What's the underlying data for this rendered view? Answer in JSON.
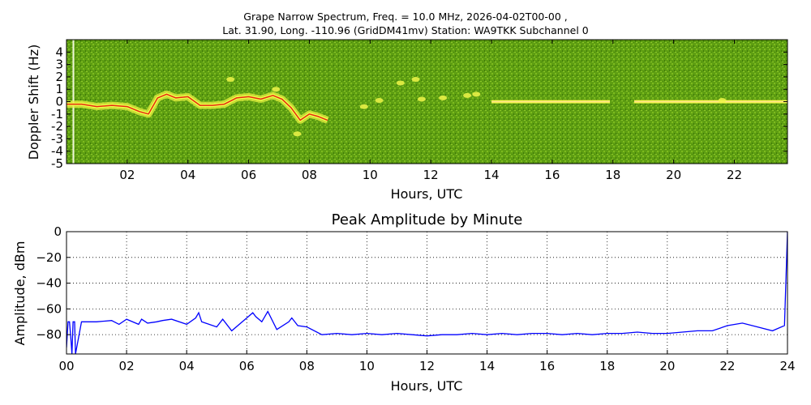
{
  "header": {
    "title_line1": "Grape Narrow Spectrum, Freq. = 10.0 MHz, 2026-04-02T00-00 ,",
    "title_line2": "Lat.  31.90, Long. -110.96 (GridDM41mv) Station: WA9TKK Subchannel 0"
  },
  "chart_data": [
    {
      "type": "heatmap",
      "title": "Grape Narrow Spectrum, Freq. = 10.0 MHz, 2026-04-02T00-00 , Lat.  31.90, Long. -110.96 (GridDM41mv) Station: WA9TKK Subchannel 0",
      "xlabel": "Hours, UTC",
      "ylabel": "Doppler Shift (Hz)",
      "xlim": [
        0,
        23.75
      ],
      "ylim": [
        -5,
        5
      ],
      "xticks": [
        2,
        4,
        6,
        8,
        10,
        12,
        14,
        16,
        18,
        20,
        22
      ],
      "xtick_labels": [
        "02",
        "04",
        "06",
        "08",
        "10",
        "12",
        "14",
        "16",
        "18",
        "20",
        "22"
      ],
      "yticks": [
        4,
        3,
        2,
        1,
        0,
        -1,
        -2,
        -3,
        -4,
        -5
      ],
      "ytick_labels": [
        "4",
        "3",
        "2",
        "1",
        "0",
        "-1",
        "-2",
        "-3",
        "-4",
        "-5"
      ],
      "colormap": "green-yellow-red",
      "background_color": "#5a9a10",
      "trace": {
        "hours": [
          0.0,
          0.5,
          1.0,
          1.5,
          2.0,
          2.4,
          2.7,
          3.0,
          3.3,
          3.6,
          4.0,
          4.4,
          4.8,
          5.2,
          5.6,
          6.0,
          6.4,
          6.8,
          7.1,
          7.4,
          7.7,
          8.0,
          8.3,
          8.6
        ],
        "doppler_hz": [
          -0.2,
          -0.2,
          -0.4,
          -0.3,
          -0.4,
          -0.8,
          -1.0,
          0.3,
          0.6,
          0.3,
          0.4,
          -0.3,
          -0.3,
          -0.2,
          0.3,
          0.4,
          0.2,
          0.5,
          0.2,
          -0.5,
          -1.5,
          -1.0,
          -1.2,
          -1.5
        ]
      },
      "flat_trace": {
        "segments": [
          [
            14.0,
            17.9,
            0.0
          ],
          [
            18.7,
            23.75,
            0.0
          ]
        ]
      },
      "blobs": [
        {
          "hour": 11.0,
          "hz": 1.5
        },
        {
          "hour": 11.5,
          "hz": 1.8
        },
        {
          "hour": 11.7,
          "hz": 0.2
        },
        {
          "hour": 12.4,
          "hz": 0.3
        },
        {
          "hour": 13.2,
          "hz": 0.5
        },
        {
          "hour": 13.5,
          "hz": 0.6
        },
        {
          "hour": 10.3,
          "hz": 0.1
        },
        {
          "hour": 9.8,
          "hz": -0.4
        },
        {
          "hour": 5.4,
          "hz": 1.8
        },
        {
          "hour": 6.9,
          "hz": 1.0
        },
        {
          "hour": 7.6,
          "hz": -2.6
        },
        {
          "hour": 21.6,
          "hz": 0.1
        }
      ]
    },
    {
      "type": "line",
      "title": "Peak Amplitude by Minute",
      "xlabel": "Hours, UTC",
      "ylabel": "Amplitude, dBm",
      "xlim": [
        0,
        24
      ],
      "ylim": [
        -95,
        0
      ],
      "grid": true,
      "xticks": [
        0,
        2,
        4,
        6,
        8,
        10,
        12,
        14,
        16,
        18,
        20,
        22,
        24
      ],
      "xtick_labels": [
        "00",
        "02",
        "04",
        "06",
        "08",
        "10",
        "12",
        "14",
        "16",
        "18",
        "20",
        "22",
        "24"
      ],
      "yticks": [
        0,
        -20,
        -40,
        -60,
        -80
      ],
      "ytick_labels": [
        "0",
        "−20",
        "−40",
        "−60",
        "−80"
      ],
      "line_color": "#0000ff",
      "series": [
        {
          "name": "",
          "x": [
            0.0,
            0.05,
            0.1,
            0.15,
            0.18,
            0.22,
            0.27,
            0.3,
            0.5,
            1.0,
            1.5,
            1.75,
            2.0,
            2.4,
            2.5,
            2.7,
            3.0,
            3.2,
            3.5,
            4.0,
            4.3,
            4.4,
            4.5,
            5.0,
            5.2,
            5.5,
            6.0,
            6.2,
            6.3,
            6.5,
            6.7,
            7.0,
            7.4,
            7.5,
            7.7,
            8.0,
            8.5,
            9.0,
            9.5,
            10.0,
            10.5,
            11.0,
            11.5,
            12.0,
            12.5,
            13.0,
            13.5,
            14.0,
            14.5,
            15.0,
            15.5,
            16.0,
            16.5,
            17.0,
            17.5,
            18.0,
            18.5,
            19.0,
            19.5,
            20.0,
            20.5,
            21.0,
            21.5,
            22.0,
            22.5,
            23.0,
            23.5,
            23.9,
            24.0
          ],
          "y": [
            -90,
            -70,
            -70,
            -85,
            -95,
            -70,
            -70,
            -95,
            -70,
            -70,
            -69,
            -72,
            -68,
            -72,
            -68,
            -71,
            -70,
            -69,
            -68,
            -72,
            -67,
            -63,
            -70,
            -74,
            -68,
            -77,
            -67,
            -63,
            -66,
            -70,
            -62,
            -76,
            -70,
            -67,
            -73,
            -74,
            -80,
            -79,
            -80,
            -79,
            -80,
            -79,
            -80,
            -81,
            -80,
            -80,
            -79,
            -80,
            -79,
            -80,
            -79,
            -79,
            -80,
            -79,
            -80,
            -79,
            -79,
            -78,
            -79,
            -79,
            -78,
            -77,
            -77,
            -73,
            -71,
            -74,
            -77,
            -73,
            0
          ]
        }
      ]
    }
  ]
}
